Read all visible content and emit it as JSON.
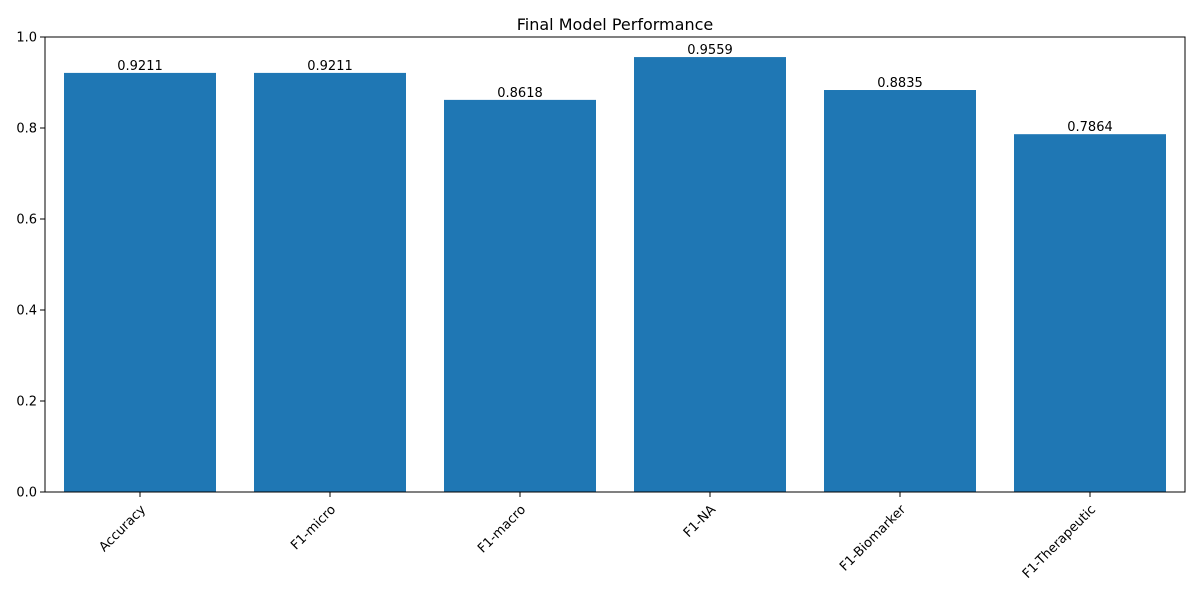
{
  "chart_data": {
    "type": "bar",
    "title": "Final Model Performance",
    "xlabel": "",
    "ylabel": "",
    "categories": [
      "Accuracy",
      "F1-micro",
      "F1-macro",
      "F1-NA",
      "F1-Biomarker",
      "F1-Therapeutic"
    ],
    "values": [
      0.9211,
      0.9211,
      0.8618,
      0.9559,
      0.8835,
      0.7864
    ],
    "value_labels": [
      "0.9211",
      "0.9211",
      "0.8618",
      "0.9559",
      "0.8835",
      "0.7864"
    ],
    "ylim": [
      0,
      1.0
    ],
    "yticks": [
      0.0,
      0.2,
      0.4,
      0.6,
      0.8,
      1.0
    ],
    "ytick_labels": [
      "0.0",
      "0.2",
      "0.4",
      "0.6",
      "0.8",
      "1.0"
    ],
    "x_tick_rotation_deg": 45,
    "grid": false,
    "legend": "none",
    "bar_color": "#1f77b4"
  }
}
